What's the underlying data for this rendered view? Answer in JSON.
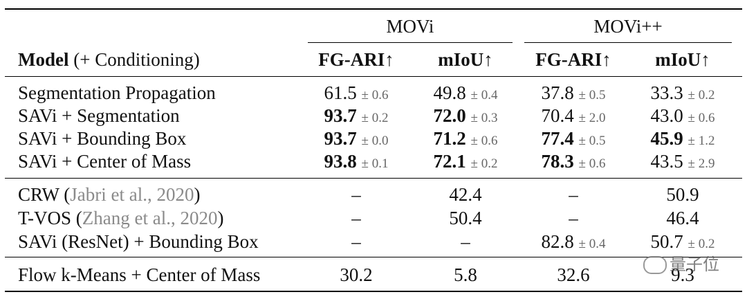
{
  "header": {
    "group_movi": "MOVi",
    "group_movipp": "MOVi++",
    "model_label_bold": "Model",
    "model_label_rest": " (+ Conditioning)",
    "col_fgari_movi": "FG-ARI↑",
    "col_miou_movi": "mIoU↑",
    "col_fgari_movipp": "FG-ARI↑",
    "col_miou_movipp": "mIoU↑"
  },
  "rows": [
    {
      "model": "Segmentation Propagation",
      "c1": "61.5",
      "c1s": "± 0.6",
      "c2": "49.8",
      "c2s": "± 0.4",
      "c3": "37.8",
      "c3s": "± 0.5",
      "c4": "33.3",
      "c4s": "± 0.2"
    },
    {
      "model": "SAVi + Segmentation",
      "c1": "93.7",
      "c1s": "± 0.2",
      "c2": "72.0",
      "c2s": "± 0.3",
      "c3": "70.4",
      "c3s": "± 2.0",
      "c4": "43.0",
      "c4s": "± 0.6"
    },
    {
      "model": "SAVi + Bounding Box",
      "c1": "93.7",
      "c1s": "± 0.0",
      "c2": "71.2",
      "c2s": "± 0.6",
      "c3": "77.4",
      "c3s": "± 0.5",
      "c4": "45.9",
      "c4s": "± 1.2"
    },
    {
      "model": "SAVi + Center of Mass",
      "c1": "93.8",
      "c1s": "± 0.1",
      "c2": "72.1",
      "c2s": "± 0.2",
      "c3": "78.3",
      "c3s": "± 0.6",
      "c4": "43.5",
      "c4s": "± 2.9"
    },
    {
      "model_pre": "CRW (",
      "cite": "Jabri et al., 2020",
      "model_post": ")",
      "c1": "–",
      "c2": "42.4",
      "c3": "–",
      "c4": "50.9"
    },
    {
      "model_pre": "T-VOS (",
      "cite": "Zhang et al., 2020",
      "model_post": ")",
      "c1": "–",
      "c2": "50.4",
      "c3": "–",
      "c4": "46.4"
    },
    {
      "model": "SAVi (ResNet) + Bounding Box",
      "c1": "–",
      "c2": "–",
      "c3": "82.8",
      "c3s": "± 0.4",
      "c4": "50.7",
      "c4s": "± 0.2"
    },
    {
      "model": "Flow k-Means + Center of Mass",
      "c1": "30.2",
      "c2": "5.8",
      "c3": "32.6",
      "c4": "9.3"
    }
  ],
  "watermark": "量子位"
}
